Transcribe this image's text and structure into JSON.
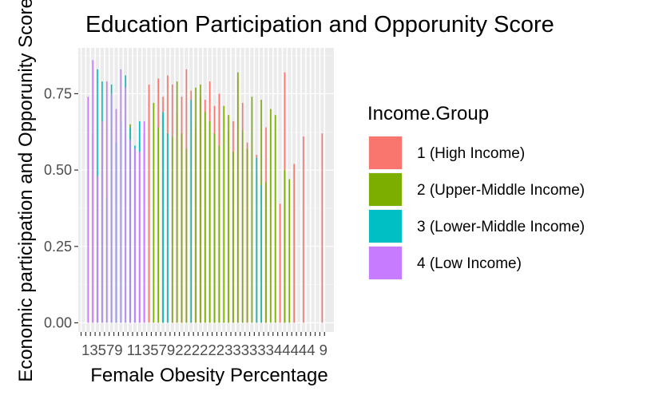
{
  "chart_data": {
    "type": "bar",
    "title": "Education Participation and Opporunity Score",
    "xlabel": "Female Obesity Percentage",
    "ylabel": "Economic participation and Opporunity Score",
    "ylim": [
      -0.03,
      0.9
    ],
    "y_ticks": [
      0.0,
      0.25,
      0.5,
      0.75
    ],
    "y_tick_labels": [
      "0.00",
      "0.25",
      "0.50",
      "0.75"
    ],
    "x_ticks_text": "13579 11357922222233333344444 9",
    "grid": true,
    "legend": {
      "title": "Income.Group",
      "position": "right",
      "items": [
        {
          "label": "1 (High Income)",
          "color": "#F8766D"
        },
        {
          "label": "2 (Upper-Middle Income)",
          "color": "#7CAE00"
        },
        {
          "label": "3 (Lower-Middle Income)",
          "color": "#00BFC4"
        },
        {
          "label": "4 (Low Income)",
          "color": "#C77CFF"
        }
      ]
    },
    "series": [
      {
        "name": "1 (High Income)",
        "color": "#F8766D",
        "points": [
          [
            3.5,
            0.62
          ],
          [
            15.5,
            0.78
          ],
          [
            17.5,
            0.8
          ],
          [
            18.5,
            0.74
          ],
          [
            19.5,
            0.81
          ],
          [
            20.5,
            0.78
          ],
          [
            21.5,
            0.69
          ],
          [
            22.5,
            0.74
          ],
          [
            23.5,
            0.83
          ],
          [
            24.5,
            0.76
          ],
          [
            25.5,
            0.64
          ],
          [
            26.5,
            0.74
          ],
          [
            27.5,
            0.73
          ],
          [
            28.5,
            0.79
          ],
          [
            29.5,
            0.71
          ],
          [
            30.5,
            0.75
          ],
          [
            31.5,
            0.68
          ],
          [
            32.5,
            0.63
          ],
          [
            33.5,
            0.66
          ],
          [
            34.5,
            0.8
          ],
          [
            35.5,
            0.72
          ],
          [
            36.5,
            0.59
          ],
          [
            38.5,
            0.55
          ],
          [
            40.5,
            0.64
          ],
          [
            43.5,
            0.39
          ],
          [
            44.5,
            0.82
          ],
          [
            46.5,
            0.52
          ],
          [
            48.5,
            0.61
          ],
          [
            52.5,
            0.62
          ]
        ]
      },
      {
        "name": "2 (Upper-Middle Income)",
        "color": "#7CAE00",
        "points": [
          [
            11.5,
            0.65
          ],
          [
            13.5,
            0.59
          ],
          [
            14.5,
            0.62
          ],
          [
            16.5,
            0.72
          ],
          [
            17.5,
            0.64
          ],
          [
            18.5,
            0.68
          ],
          [
            20.5,
            0.61
          ],
          [
            21.5,
            0.79
          ],
          [
            22.5,
            0.62
          ],
          [
            23.5,
            0.57
          ],
          [
            24.5,
            0.65
          ],
          [
            25.5,
            0.77
          ],
          [
            26.5,
            0.78
          ],
          [
            27.5,
            0.69
          ],
          [
            28.5,
            0.66
          ],
          [
            29.5,
            0.62
          ],
          [
            30.5,
            0.58
          ],
          [
            31.5,
            0.71
          ],
          [
            32.5,
            0.68
          ],
          [
            33.5,
            0.56
          ],
          [
            34.5,
            0.82
          ],
          [
            35.5,
            0.63
          ],
          [
            36.5,
            0.57
          ],
          [
            37.5,
            0.74
          ],
          [
            38.5,
            0.48
          ],
          [
            39.5,
            0.73
          ],
          [
            40.5,
            0.46
          ],
          [
            41.5,
            0.7
          ],
          [
            42.5,
            0.68
          ],
          [
            44.5,
            0.5
          ],
          [
            45.5,
            0.47
          ]
        ]
      },
      {
        "name": "3 (Lower-Middle Income)",
        "color": "#00BFC4",
        "points": [
          [
            4.5,
            0.83
          ],
          [
            5.5,
            0.79
          ],
          [
            6.5,
            0.41
          ],
          [
            7.5,
            0.78
          ],
          [
            8.5,
            0.59
          ],
          [
            9.5,
            0.66
          ],
          [
            10.5,
            0.81
          ],
          [
            11.5,
            0.64
          ],
          [
            12.5,
            0.58
          ],
          [
            13.5,
            0.66
          ],
          [
            18.5,
            0.69
          ],
          [
            19.5,
            0.62
          ],
          [
            24.5,
            0.73
          ],
          [
            38.5,
            0.54
          ],
          [
            39.5,
            0.45
          ]
        ]
      },
      {
        "name": "4 (Low Income)",
        "color": "#C77CFF",
        "points": [
          [
            2.5,
            0.74
          ],
          [
            3.5,
            0.86
          ],
          [
            4.5,
            0.48
          ],
          [
            5.5,
            0.66
          ],
          [
            6.5,
            0.79
          ],
          [
            7.5,
            0.75
          ],
          [
            8.5,
            0.7
          ],
          [
            9.5,
            0.83
          ],
          [
            10.5,
            0.77
          ],
          [
            11.5,
            0.6
          ],
          [
            12.5,
            0.57
          ],
          [
            13.5,
            0.56
          ],
          [
            14.5,
            0.66
          ]
        ]
      }
    ]
  }
}
